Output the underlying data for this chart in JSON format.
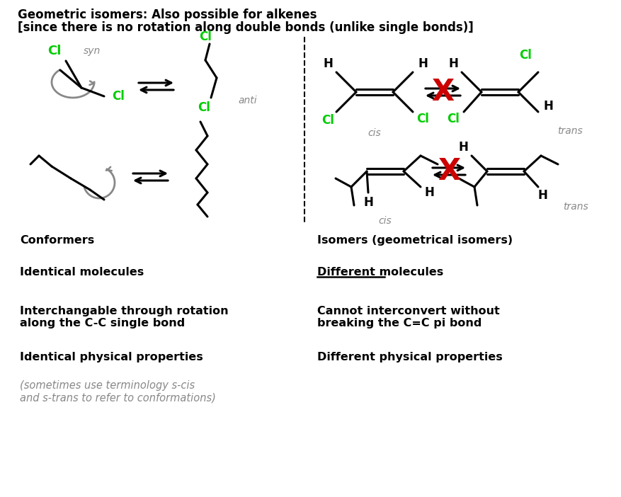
{
  "title_line1": "Geometric isomers: Also possible for alkenes",
  "title_line2": "[since there is no rotation along double bonds (unlike single bonds)]",
  "bg_color": "#ffffff",
  "text_color": "#000000",
  "green_color": "#00cc00",
  "gray_color": "#888888",
  "red_color": "#cc0000",
  "left_col_labels": [
    "Conformers",
    "Identical molecules",
    "Interchangable through rotation\nalong the C-C single bond",
    "Identical physical properties"
  ],
  "right_col_labels": [
    "Isomers (geometrical isomers)",
    "Different molecules",
    "Cannot interconvert without\nbreaking the C=C pi bond",
    "Different physical properties"
  ],
  "italic_note": "(sometimes use terminology s-cis\nand s-trans to refer to conformations)"
}
